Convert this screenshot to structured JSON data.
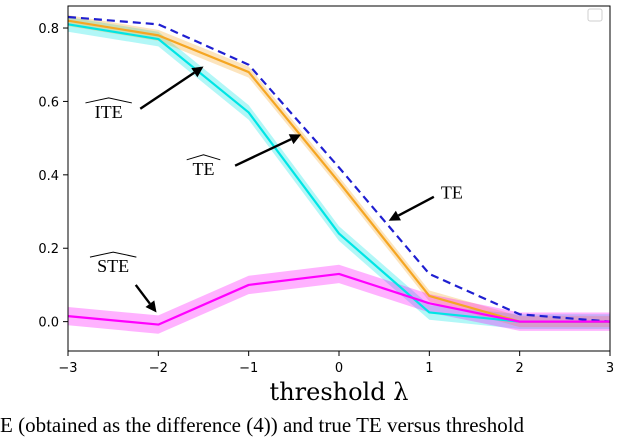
{
  "chart_data": {
    "type": "line",
    "xlabel": "threshold λ",
    "ylabel": "",
    "xlim": [
      -3,
      3
    ],
    "ylim": [
      -0.08,
      0.86
    ],
    "x": [
      -3,
      -2,
      -1,
      0,
      1,
      2,
      3
    ],
    "xticks": [
      -3,
      -2,
      -1,
      0,
      1,
      2,
      3
    ],
    "yticks": [
      0.0,
      0.2,
      0.4,
      0.6,
      0.8
    ],
    "xtick_labels": [
      "−3",
      "−2",
      "−1",
      "0",
      "1",
      "2",
      "3"
    ],
    "ytick_labels": [
      "0.0",
      "0.2",
      "0.4",
      "0.6",
      "0.8"
    ],
    "grid": false,
    "series": [
      {
        "key": "ITE_hat",
        "style": "solid",
        "color": "#00e5e5",
        "band": 0.02,
        "values": [
          0.81,
          0.77,
          0.57,
          0.24,
          0.025,
          0.0,
          0.0
        ]
      },
      {
        "key": "TE_hat",
        "style": "solid",
        "color": "#f5a623",
        "band": 0.015,
        "values": [
          0.82,
          0.78,
          0.68,
          0.38,
          0.07,
          0.0,
          0.0
        ]
      },
      {
        "key": "TE",
        "style": "dashed",
        "color": "#1f1fd1",
        "band": 0,
        "values": [
          0.83,
          0.81,
          0.7,
          0.42,
          0.13,
          0.02,
          0.0
        ]
      },
      {
        "key": "STE_hat",
        "style": "solid",
        "color": "#ff00ff",
        "band": 0.025,
        "values": [
          0.015,
          -0.008,
          0.1,
          0.13,
          0.05,
          0.0,
          0.0
        ]
      }
    ],
    "annotations": [
      {
        "text": "ITE",
        "hat": true,
        "text_x": -2.55,
        "text_y": 0.555,
        "arrow_from": [
          -2.2,
          0.58
        ],
        "arrow_to": [
          -1.5,
          0.695
        ]
      },
      {
        "text": "TE",
        "hat": true,
        "text_x": -1.5,
        "text_y": 0.4,
        "arrow_from": [
          -1.15,
          0.425
        ],
        "arrow_to": [
          -0.42,
          0.51
        ]
      },
      {
        "text": "TE",
        "hat": false,
        "text_x": 1.25,
        "text_y": 0.335,
        "arrow_from": [
          1.05,
          0.34
        ],
        "arrow_to": [
          0.55,
          0.275
        ]
      },
      {
        "text": "STE",
        "hat": true,
        "text_x": -2.5,
        "text_y": 0.135,
        "arrow_from": [
          -2.25,
          0.1
        ],
        "arrow_to": [
          -2.02,
          0.025
        ]
      }
    ]
  },
  "caption": "E (obtained as the difference (4)) and true TE versus threshold"
}
